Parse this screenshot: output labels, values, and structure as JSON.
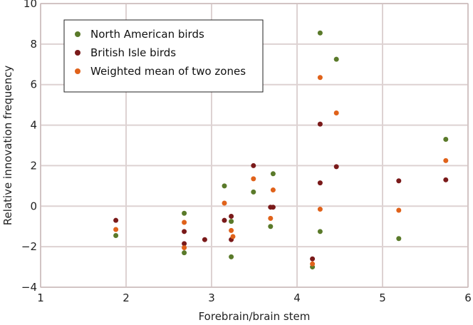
{
  "chart_data": {
    "type": "scatter",
    "xlabel": "Forebrain/brain stem",
    "ylabel": "Relative innovation frequency",
    "xlim": [
      1,
      6
    ],
    "ylim": [
      -4,
      10
    ],
    "x_ticks": [
      "1",
      "2",
      "3",
      "4",
      "5",
      "6"
    ],
    "y_ticks": [
      "−4",
      "−2",
      "0",
      "2",
      "4",
      "6",
      "8",
      "10"
    ],
    "grid": true,
    "legend_position": "top-left",
    "series": [
      {
        "name": "North American birds",
        "color": "#5a7a2a",
        "points": [
          [
            1.88,
            -1.45
          ],
          [
            2.68,
            -0.35
          ],
          [
            2.68,
            -2.3
          ],
          [
            3.15,
            1.0
          ],
          [
            3.23,
            -0.75
          ],
          [
            3.23,
            -2.5
          ],
          [
            3.49,
            0.7
          ],
          [
            3.69,
            -1.0
          ],
          [
            3.72,
            1.6
          ],
          [
            4.18,
            -3.0
          ],
          [
            4.27,
            8.55
          ],
          [
            4.27,
            -1.25
          ],
          [
            4.46,
            7.25
          ],
          [
            5.19,
            -1.6
          ],
          [
            5.74,
            3.3
          ]
        ]
      },
      {
        "name": "British Isle birds",
        "color": "#7a1a1a",
        "points": [
          [
            1.88,
            -0.7
          ],
          [
            2.68,
            -1.25
          ],
          [
            2.68,
            -1.85
          ],
          [
            2.92,
            -1.65
          ],
          [
            3.15,
            -0.7
          ],
          [
            3.23,
            -0.5
          ],
          [
            3.23,
            -1.65
          ],
          [
            3.49,
            2.0
          ],
          [
            3.69,
            -0.05
          ],
          [
            3.72,
            -0.05
          ],
          [
            4.18,
            -2.6
          ],
          [
            4.27,
            4.05
          ],
          [
            4.27,
            1.15
          ],
          [
            4.46,
            1.95
          ],
          [
            5.19,
            1.25
          ],
          [
            5.74,
            1.3
          ]
        ]
      },
      {
        "name": "Weighted mean of two zones",
        "color": "#e0621a",
        "points": [
          [
            1.88,
            -1.15
          ],
          [
            2.68,
            -0.8
          ],
          [
            2.68,
            -2.05
          ],
          [
            3.15,
            0.15
          ],
          [
            3.23,
            -1.2
          ],
          [
            3.25,
            -1.5
          ],
          [
            3.49,
            1.35
          ],
          [
            3.69,
            -0.6
          ],
          [
            3.72,
            0.8
          ],
          [
            4.18,
            -2.85
          ],
          [
            4.27,
            6.35
          ],
          [
            4.27,
            -0.15
          ],
          [
            4.46,
            4.6
          ],
          [
            5.19,
            -0.2
          ],
          [
            5.74,
            2.25
          ]
        ]
      }
    ]
  }
}
